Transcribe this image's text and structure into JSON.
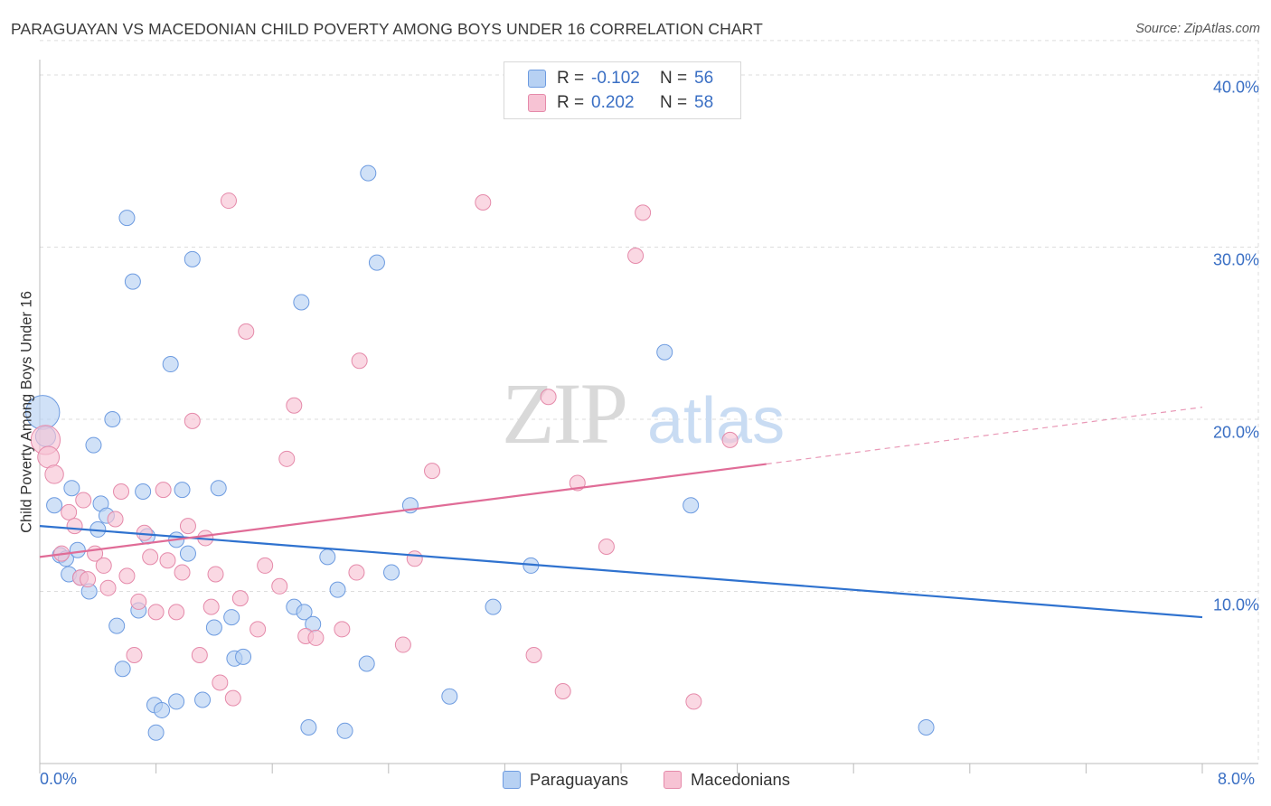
{
  "title": "PARAGUAYAN VS MACEDONIAN CHILD POVERTY AMONG BOYS UNDER 16 CORRELATION CHART",
  "source": "Source: ZipAtlas.com",
  "watermark": {
    "zip": "ZIP",
    "atlas": "atlas"
  },
  "legend": {
    "rows": [
      {
        "r_label": "R =",
        "r_value": "-0.102",
        "n_label": "N =",
        "n_value": "56"
      },
      {
        "r_label": "R =",
        "r_value": "0.202",
        "n_label": "N =",
        "n_value": "58"
      }
    ]
  },
  "bottom_legend": {
    "paraguayans": "Paraguayans",
    "macedonians": "Macedonians"
  },
  "colors": {
    "blue_fill": "#b7d1f3",
    "blue_stroke": "#6d9be0",
    "blue_line": "#2f72cf",
    "pink_fill": "#f7c3d4",
    "pink_stroke": "#e58aaa",
    "pink_line": "#e06c97",
    "tick_text": "#3a6fc4"
  },
  "chart_data": {
    "type": "scatter",
    "title": "PARAGUAYAN VS MACEDONIAN CHILD POVERTY AMONG BOYS UNDER 16 CORRELATION CHART",
    "xlabel": "",
    "ylabel": "Child Poverty Among Boys Under 16",
    "xlim": [
      0,
      8
    ],
    "ylim": [
      0,
      42
    ],
    "x_tick_labels": [
      "0.0%",
      "8.0%"
    ],
    "y_ticks": [
      10,
      20,
      30,
      40
    ],
    "y_tick_labels": [
      "10.0%",
      "20.0%",
      "30.0%",
      "40.0%"
    ],
    "grid": true,
    "legend_position": "top-center",
    "series": [
      {
        "name": "Paraguayans",
        "r": -0.102,
        "n": 56,
        "trend": {
          "x0": 0.0,
          "y0": 13.8,
          "x1": 8.0,
          "y1": 8.5
        },
        "points": [
          [
            0.02,
            20.4,
            2.2
          ],
          [
            0.04,
            19.0,
            1.3
          ],
          [
            0.1,
            15.0,
            1
          ],
          [
            0.14,
            12.1,
            1
          ],
          [
            0.18,
            11.9,
            1
          ],
          [
            0.2,
            11.0,
            1
          ],
          [
            0.22,
            16.0,
            1
          ],
          [
            0.26,
            12.4,
            1
          ],
          [
            0.28,
            10.8,
            1
          ],
          [
            0.34,
            10.0,
            1
          ],
          [
            0.37,
            18.5,
            1
          ],
          [
            0.4,
            13.6,
            1
          ],
          [
            0.42,
            15.1,
            1
          ],
          [
            0.46,
            14.4,
            1
          ],
          [
            0.5,
            20.0,
            1
          ],
          [
            0.53,
            8.0,
            1
          ],
          [
            0.57,
            5.5,
            1
          ],
          [
            0.6,
            31.7,
            1
          ],
          [
            0.64,
            28.0,
            1
          ],
          [
            0.68,
            8.9,
            1
          ],
          [
            0.71,
            15.8,
            1
          ],
          [
            0.74,
            13.2,
            1
          ],
          [
            0.79,
            3.4,
            1
          ],
          [
            0.8,
            1.8,
            1
          ],
          [
            0.84,
            3.1,
            1
          ],
          [
            0.9,
            23.2,
            1
          ],
          [
            0.94,
            3.6,
            1
          ],
          [
            0.94,
            13.0,
            1
          ],
          [
            0.98,
            15.9,
            1
          ],
          [
            1.02,
            12.2,
            1
          ],
          [
            1.05,
            29.3,
            1
          ],
          [
            1.12,
            3.7,
            1
          ],
          [
            1.2,
            7.9,
            1
          ],
          [
            1.23,
            16.0,
            1
          ],
          [
            1.32,
            8.5,
            1
          ],
          [
            1.34,
            6.1,
            1
          ],
          [
            1.4,
            6.2,
            1
          ],
          [
            1.75,
            9.1,
            1
          ],
          [
            1.8,
            26.8,
            1
          ],
          [
            1.82,
            8.8,
            1
          ],
          [
            1.85,
            2.1,
            1
          ],
          [
            1.88,
            8.1,
            1
          ],
          [
            1.98,
            12.0,
            1
          ],
          [
            2.05,
            10.1,
            1
          ],
          [
            2.1,
            1.9,
            1
          ],
          [
            2.25,
            5.8,
            1
          ],
          [
            2.26,
            34.3,
            1
          ],
          [
            2.32,
            29.1,
            1
          ],
          [
            2.42,
            11.1,
            1
          ],
          [
            2.55,
            15.0,
            1
          ],
          [
            2.82,
            3.9,
            1
          ],
          [
            3.12,
            9.1,
            1
          ],
          [
            3.38,
            11.5,
            1
          ],
          [
            4.3,
            23.9,
            1
          ],
          [
            4.48,
            15.0,
            1
          ],
          [
            6.1,
            2.1,
            1
          ]
        ]
      },
      {
        "name": "Macedonians",
        "r": 0.202,
        "n": 58,
        "trend": {
          "x0": 0.0,
          "y0": 12.0,
          "x1": 5.0,
          "y1": 17.4,
          "dash_x1": 8.0,
          "dash_y1": 20.7
        },
        "points": [
          [
            0.04,
            18.8,
            1.9
          ],
          [
            0.06,
            17.8,
            1.4
          ],
          [
            0.1,
            16.8,
            1.2
          ],
          [
            0.15,
            12.2,
            1
          ],
          [
            0.2,
            14.6,
            1
          ],
          [
            0.24,
            13.8,
            1
          ],
          [
            0.28,
            10.8,
            1
          ],
          [
            0.3,
            15.3,
            1
          ],
          [
            0.33,
            10.7,
            1
          ],
          [
            0.38,
            12.2,
            1
          ],
          [
            0.44,
            11.5,
            1
          ],
          [
            0.47,
            10.2,
            1
          ],
          [
            0.52,
            14.2,
            1
          ],
          [
            0.56,
            15.8,
            1
          ],
          [
            0.6,
            10.9,
            1
          ],
          [
            0.65,
            6.3,
            1
          ],
          [
            0.68,
            9.4,
            1
          ],
          [
            0.72,
            13.4,
            1
          ],
          [
            0.76,
            12.0,
            1
          ],
          [
            0.8,
            8.8,
            1
          ],
          [
            0.85,
            15.9,
            1
          ],
          [
            0.88,
            11.8,
            1
          ],
          [
            0.94,
            8.8,
            1
          ],
          [
            0.98,
            11.1,
            1
          ],
          [
            1.02,
            13.8,
            1
          ],
          [
            1.05,
            19.9,
            1
          ],
          [
            1.1,
            6.3,
            1
          ],
          [
            1.14,
            13.1,
            1
          ],
          [
            1.18,
            9.1,
            1
          ],
          [
            1.21,
            11.0,
            1
          ],
          [
            1.24,
            4.7,
            1
          ],
          [
            1.3,
            32.7,
            1
          ],
          [
            1.33,
            3.8,
            1
          ],
          [
            1.38,
            9.6,
            1
          ],
          [
            1.42,
            25.1,
            1
          ],
          [
            1.5,
            7.8,
            1
          ],
          [
            1.55,
            11.5,
            1
          ],
          [
            1.65,
            10.3,
            1
          ],
          [
            1.7,
            17.7,
            1
          ],
          [
            1.75,
            20.8,
            1
          ],
          [
            1.83,
            7.4,
            1
          ],
          [
            1.9,
            7.3,
            1
          ],
          [
            2.08,
            7.8,
            1
          ],
          [
            2.18,
            11.1,
            1
          ],
          [
            2.2,
            23.4,
            1
          ],
          [
            2.5,
            6.9,
            1
          ],
          [
            2.58,
            11.9,
            1
          ],
          [
            2.7,
            17.0,
            1
          ],
          [
            3.05,
            32.6,
            1
          ],
          [
            3.4,
            6.3,
            1
          ],
          [
            3.5,
            21.3,
            1
          ],
          [
            3.6,
            4.2,
            1
          ],
          [
            3.7,
            16.3,
            1
          ],
          [
            3.9,
            12.6,
            1
          ],
          [
            4.1,
            29.5,
            1
          ],
          [
            4.15,
            32.0,
            1
          ],
          [
            4.5,
            3.6,
            1
          ],
          [
            4.75,
            18.8,
            1
          ]
        ]
      }
    ]
  }
}
